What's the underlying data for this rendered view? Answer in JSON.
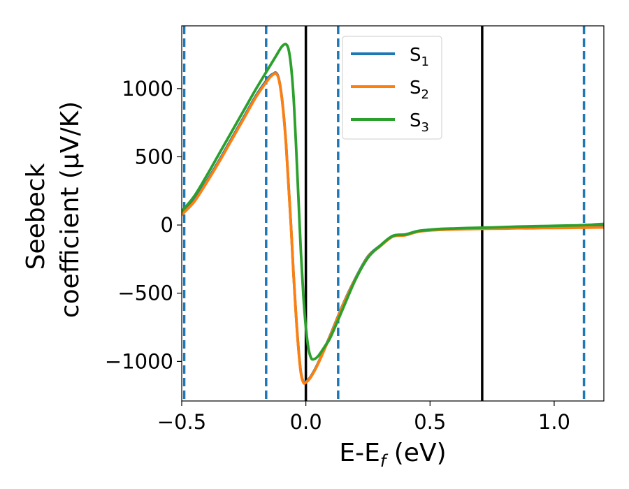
{
  "chart_data": {
    "type": "line",
    "xlabel_main": "E-E",
    "xlabel_sub": "f",
    "xlabel_unit": " (eV)",
    "ylabel_line1": "Seebeck",
    "ylabel_line2": "coefficient  (μV/K)",
    "xlim": [
      -0.5,
      1.2
    ],
    "ylim": [
      -1290,
      1460
    ],
    "xticks": [
      {
        "value": -0.5,
        "label": "−0.5"
      },
      {
        "value": 0.0,
        "label": "0.0"
      },
      {
        "value": 0.5,
        "label": "0.5"
      },
      {
        "value": 1.0,
        "label": "1.0"
      }
    ],
    "yticks": [
      {
        "value": -1000,
        "label": "−1000"
      },
      {
        "value": -500,
        "label": "−500"
      },
      {
        "value": 0,
        "label": "0"
      },
      {
        "value": 500,
        "label": "500"
      },
      {
        "value": 1000,
        "label": "1000"
      }
    ],
    "grid": false,
    "legend_position": "top-center",
    "vlines_dashed": {
      "color": "#1f77b4",
      "x": [
        -0.49,
        -0.16,
        0.13,
        1.12
      ]
    },
    "vlines_solid": {
      "color": "#000000",
      "x": [
        0.0,
        0.71
      ]
    },
    "series": [
      {
        "name": "S",
        "sub": "1",
        "color": "#1f77b4",
        "x": [
          -0.5,
          -0.45,
          -0.4,
          -0.35,
          -0.3,
          -0.25,
          -0.2,
          -0.15,
          -0.13,
          -0.12,
          -0.11,
          -0.1,
          -0.09,
          -0.08,
          -0.07,
          -0.06,
          -0.05,
          -0.04,
          -0.03,
          -0.02,
          -0.01,
          0.0,
          0.02,
          0.05,
          0.1,
          0.15,
          0.2,
          0.25,
          0.3,
          0.35,
          0.4,
          0.45,
          0.5,
          0.55,
          0.6,
          0.65,
          0.7,
          0.75,
          0.8,
          0.85,
          0.9,
          0.95,
          1.0,
          1.05,
          1.1,
          1.15,
          1.2
        ],
        "y": [
          80,
          180,
          320,
          470,
          630,
          790,
          950,
          1080,
          1110,
          1115,
          1080,
          980,
          820,
          600,
          300,
          0,
          -350,
          -650,
          -900,
          -1080,
          -1150,
          -1150,
          -1110,
          -1010,
          -800,
          -580,
          -390,
          -230,
          -150,
          -80,
          -70,
          -45,
          -35,
          -30,
          -28,
          -25,
          -22,
          -20,
          -18,
          -15,
          -14,
          -12,
          -12,
          -11,
          -10,
          -9,
          -8
        ]
      },
      {
        "name": "S",
        "sub": "2",
        "color": "#ff7f0e",
        "x": [
          -0.5,
          -0.45,
          -0.4,
          -0.35,
          -0.3,
          -0.25,
          -0.2,
          -0.15,
          -0.13,
          -0.12,
          -0.11,
          -0.1,
          -0.09,
          -0.08,
          -0.07,
          -0.06,
          -0.05,
          -0.04,
          -0.03,
          -0.02,
          -0.01,
          0.0,
          0.02,
          0.05,
          0.1,
          0.15,
          0.2,
          0.25,
          0.3,
          0.35,
          0.4,
          0.45,
          0.5,
          0.55,
          0.6,
          0.65,
          0.7,
          0.75,
          0.8,
          0.85,
          0.9,
          0.95,
          1.0,
          1.05,
          1.1,
          1.15,
          1.2
        ],
        "y": [
          75,
          170,
          310,
          460,
          620,
          780,
          940,
          1070,
          1105,
          1110,
          1075,
          975,
          815,
          595,
          295,
          -5,
          -355,
          -655,
          -905,
          -1085,
          -1155,
          -1155,
          -1115,
          -1015,
          -805,
          -585,
          -395,
          -235,
          -155,
          -85,
          -75,
          -50,
          -40,
          -35,
          -32,
          -30,
          -28,
          -27,
          -26,
          -24,
          -24,
          -22,
          -22,
          -21,
          -20,
          -19,
          -18
        ]
      },
      {
        "name": "S",
        "sub": "3",
        "color": "#2ca02c",
        "x": [
          -0.5,
          -0.45,
          -0.4,
          -0.35,
          -0.3,
          -0.25,
          -0.2,
          -0.15,
          -0.12,
          -0.1,
          -0.09,
          -0.08,
          -0.07,
          -0.06,
          -0.05,
          -0.04,
          -0.03,
          -0.02,
          -0.01,
          0.0,
          0.01,
          0.02,
          0.03,
          0.05,
          0.08,
          0.1,
          0.15,
          0.2,
          0.25,
          0.3,
          0.35,
          0.4,
          0.45,
          0.5,
          0.55,
          0.6,
          0.65,
          0.7,
          0.75,
          0.8,
          0.85,
          0.9,
          0.95,
          1.0,
          1.05,
          1.1,
          1.15,
          1.2
        ],
        "y": [
          100,
          210,
          360,
          520,
          680,
          840,
          1000,
          1150,
          1240,
          1300,
          1320,
          1325,
          1290,
          1170,
          950,
          600,
          200,
          -200,
          -520,
          -750,
          -900,
          -970,
          -985,
          -960,
          -880,
          -820,
          -610,
          -400,
          -240,
          -150,
          -80,
          -70,
          -45,
          -35,
          -28,
          -25,
          -22,
          -20,
          -18,
          -15,
          -12,
          -10,
          -8,
          -6,
          -4,
          -2,
          2,
          8
        ]
      }
    ]
  }
}
